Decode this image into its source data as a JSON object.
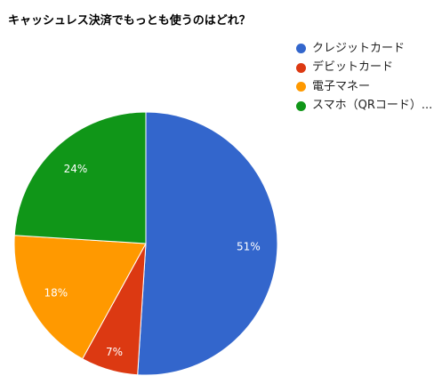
{
  "chart_data": {
    "type": "pie",
    "title": "キャッシュレス決済でもっとも使うのはどれ？",
    "categories": [
      "クレジットカード",
      "デビットカード",
      "電子マネー",
      "スマホ（QRコード）..."
    ],
    "values": [
      51,
      7,
      18,
      24
    ],
    "value_labels": [
      "51%",
      "7%",
      "18%",
      "24%"
    ],
    "colors": [
      "#3366cc",
      "#dc3912",
      "#ff9900",
      "#109618"
    ],
    "legend_position": "right",
    "start_angle_deg": 0,
    "direction": "clockwise"
  }
}
